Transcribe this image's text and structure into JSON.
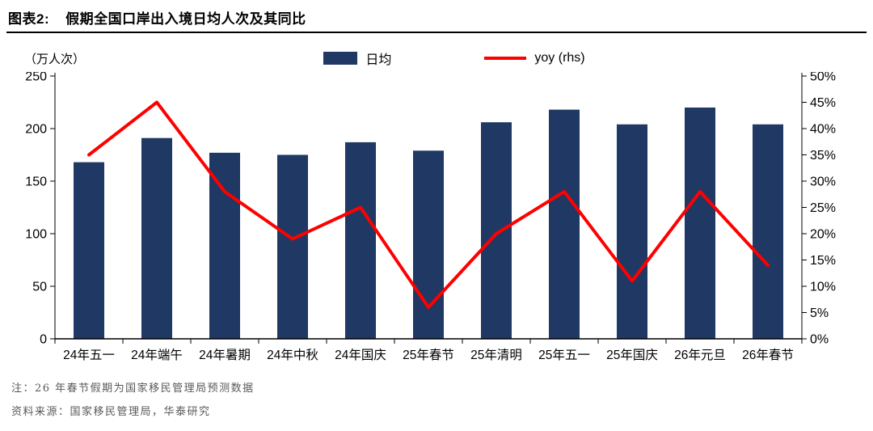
{
  "header": {
    "label": "图表2:",
    "title": "假期全国口岸出入境日均人次及其同比"
  },
  "legend": [
    {
      "name": "日均",
      "type": "bar",
      "color": "#1F3864"
    },
    {
      "name": "yoy (rhs)",
      "type": "line",
      "color": "#FF0000"
    }
  ],
  "chart_data": {
    "type": "bar",
    "title": "假期全国口岸出入境日均人次及其同比",
    "xlabel": "",
    "ylabel": "（万人次）",
    "categories": [
      "24年五一",
      "24年端午",
      "24年暑期",
      "24年中秋",
      "24年国庆",
      "25年春节",
      "25年清明",
      "25年五一",
      "25年国庆",
      "26年元旦",
      "26年春节"
    ],
    "series": [
      {
        "name": "日均",
        "type": "bar",
        "axis": "left",
        "color": "#1F3864",
        "values": [
          168,
          191,
          177,
          175,
          187,
          179,
          206,
          218,
          204,
          220,
          204
        ]
      },
      {
        "name": "yoy (rhs)",
        "type": "line",
        "axis": "right",
        "color": "#FF0000",
        "values": [
          35,
          45,
          28,
          19,
          25,
          6,
          20,
          28,
          11,
          28,
          14
        ]
      }
    ],
    "left_axis": {
      "label": "（万人次）",
      "min": 0,
      "max": 250,
      "step": 50
    },
    "right_axis": {
      "min": 0,
      "max": 50,
      "step": 5,
      "suffix": "%"
    },
    "grid": false,
    "legend_position": "top"
  },
  "notes": {
    "note": "注：26 年春节假期为国家移民管理局预测数据",
    "source": "资料来源：国家移民管理局，华泰研究"
  }
}
